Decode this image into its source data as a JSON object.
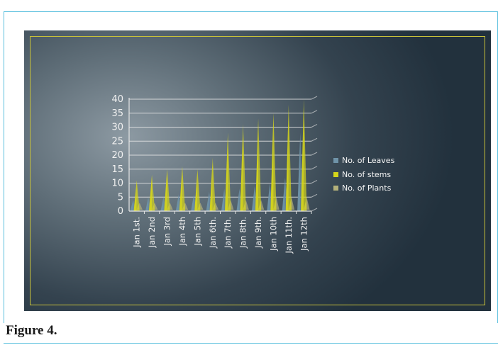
{
  "caption": "Figure 4.",
  "colors": {
    "leaves": "#6f93a8",
    "stems": "#d6d61a",
    "plants": "#b3b07a",
    "axis_text": "#f0f0f0",
    "gridline": "#e6e6e6",
    "slide_border": "#c8c13a"
  },
  "chart_data": {
    "type": "bar",
    "style": "3d-cone",
    "categories": [
      "Jan 1st.",
      "Jan 2nd",
      "Jan 3rd",
      "Jan 4th",
      "Jan 5th",
      "Jan 6th.",
      "Jan 7th.",
      "Jan 8th.",
      "Jan 9th.",
      "Jan 10th",
      "Jan 11th.",
      "Jan 12th"
    ],
    "series": [
      {
        "name": "No. of Leaves",
        "values": [
          4,
          5,
          5,
          6,
          6,
          7,
          8,
          8,
          9,
          10,
          12,
          28
        ]
      },
      {
        "name": "No. of stems",
        "values": [
          11,
          13,
          15,
          16,
          15,
          19,
          28,
          31,
          33,
          35,
          38,
          40
        ]
      },
      {
        "name": "No. of Plants",
        "values": [
          3,
          3,
          3,
          3,
          3,
          3,
          4,
          4,
          4,
          5,
          5,
          5
        ]
      }
    ],
    "ylim": [
      0,
      40
    ],
    "yticks": [
      0,
      5,
      10,
      15,
      20,
      25,
      30,
      35,
      40
    ],
    "title": "",
    "xlabel": "",
    "ylabel": "",
    "grid": true,
    "legend": "right"
  }
}
